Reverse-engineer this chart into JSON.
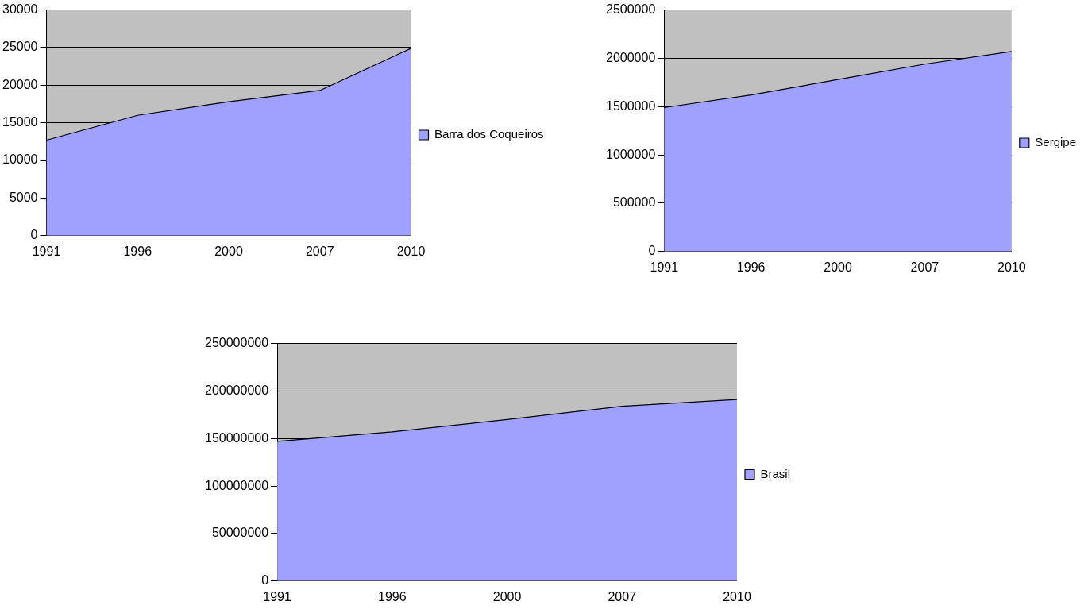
{
  "chart_data": [
    {
      "type": "area",
      "categories": [
        "1991",
        "1996",
        "2000",
        "2007",
        "2010"
      ],
      "series": [
        {
          "name": "Barra dos Coqueiros",
          "color": "#a0a0ff",
          "values": [
            12700,
            16000,
            17800,
            19300,
            24900
          ]
        }
      ],
      "ylim": [
        0,
        30000
      ],
      "yticks": [
        0,
        5000,
        10000,
        15000,
        20000,
        25000,
        30000
      ],
      "grid": "y",
      "legend": "right"
    },
    {
      "type": "area",
      "categories": [
        "1991",
        "1996",
        "2000",
        "2007",
        "2010"
      ],
      "series": [
        {
          "name": "Sergipe",
          "color": "#a0a0ff",
          "values": [
            1490000,
            1620000,
            1780000,
            1940000,
            2070000
          ]
        }
      ],
      "ylim": [
        0,
        2500000
      ],
      "yticks": [
        0,
        500000,
        1000000,
        1500000,
        2000000,
        2500000
      ],
      "grid": "y",
      "legend": "right"
    },
    {
      "type": "area",
      "categories": [
        "1991",
        "1996",
        "2000",
        "2007",
        "2010"
      ],
      "series": [
        {
          "name": "Brasil",
          "color": "#a0a0ff",
          "values": [
            147000000,
            157000000,
            170000000,
            184000000,
            191000000
          ]
        }
      ],
      "ylim": [
        0,
        250000000
      ],
      "yticks": [
        0,
        50000000,
        100000000,
        150000000,
        200000000,
        250000000
      ],
      "grid": "y",
      "legend": "right"
    }
  ]
}
